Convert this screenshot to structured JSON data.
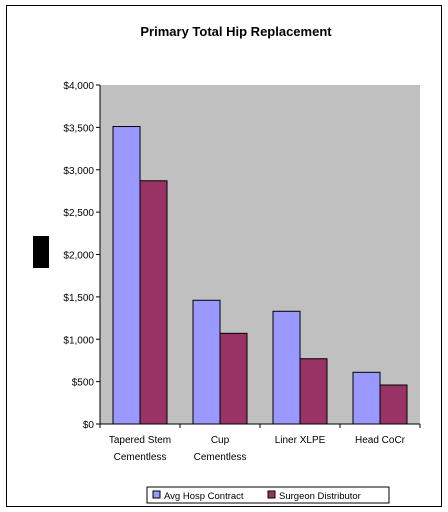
{
  "chart_data": {
    "type": "bar",
    "title": "Primary Total Hip Replacement",
    "xlabel": "",
    "ylabel": "",
    "categories": [
      [
        "Tapered Stem",
        "Cementless"
      ],
      [
        "Cup",
        "Cementless"
      ],
      [
        "Liner XLPE"
      ],
      [
        "Head CoCr"
      ]
    ],
    "series": [
      {
        "name": "Avg Hosp Contract",
        "values": [
          3510,
          1460,
          1330,
          610
        ],
        "color": "#9999ff"
      },
      {
        "name": "Surgeon Distributor",
        "values": [
          2870,
          1070,
          770,
          460
        ],
        "color": "#993366"
      }
    ],
    "ylim": [
      0,
      4000
    ],
    "yticks": [
      0,
      500,
      1000,
      1500,
      2000,
      2500,
      3000,
      3500,
      4000
    ],
    "ytick_labels": [
      "$0",
      "$500",
      "$1,000",
      "$1,500",
      "$2,000",
      "$2,500",
      "$3,000",
      "$3,500",
      "$4,000"
    ],
    "grid": false,
    "plot_background": "#c0c0c0",
    "legend_placement": "bottom",
    "redaction_color": "#000000"
  }
}
